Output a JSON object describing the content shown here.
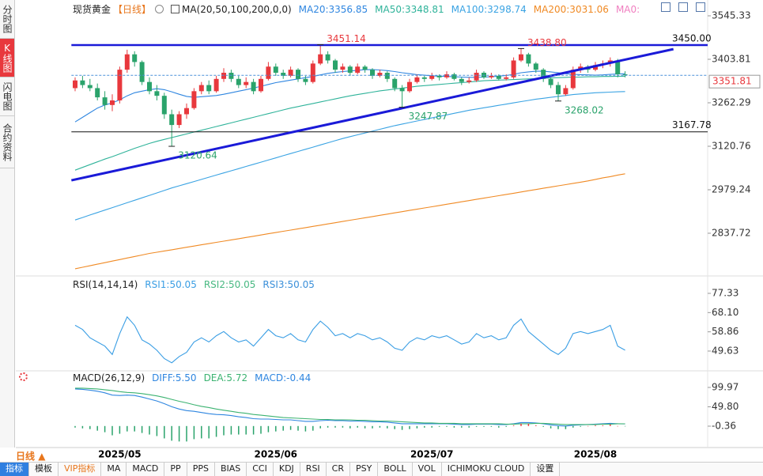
{
  "sidebar": {
    "tabs": [
      "分时图",
      "K线图",
      "闪电图",
      "合约资料"
    ]
  },
  "period_selector": "日线",
  "toolbar": [
    "指标",
    "模板",
    "VIP指标",
    "MA",
    "MACD",
    "PP",
    "PPS",
    "BIAS",
    "CCI",
    "KDJ",
    "RSI",
    "CR",
    "PSY",
    "BOLL",
    "VOL",
    "ICHIMOKU CLOUD",
    "设置"
  ],
  "chart_data": [
    {
      "type": "candlestick",
      "title": "现货黄金",
      "period": "【日线】",
      "indicator": "MA(20,50,100,200,0,0)",
      "categories": [
        null,
        null,
        null,
        null,
        null,
        null,
        "2025/05",
        null,
        null,
        null,
        null,
        null,
        null,
        null,
        null,
        null,
        null,
        null,
        null,
        null,
        null,
        null,
        null,
        null,
        null,
        null,
        null,
        "2025/06",
        null,
        null,
        null,
        null,
        null,
        null,
        null,
        null,
        null,
        null,
        null,
        null,
        null,
        null,
        null,
        null,
        null,
        null,
        null,
        null,
        "2025/07",
        null,
        null,
        null,
        null,
        null,
        null,
        null,
        null,
        null,
        null,
        null,
        null,
        null,
        null,
        null,
        null,
        null,
        null,
        null,
        null,
        null,
        "2025/08",
        null,
        null,
        null,
        null
      ],
      "open": [
        3310,
        3335,
        3320,
        3310,
        3280,
        3255,
        3270,
        3370,
        3420,
        3395,
        3330,
        3300,
        3285,
        3225,
        3190,
        3225,
        3245,
        3300,
        3320,
        3300,
        3340,
        3360,
        3340,
        3320,
        3330,
        3300,
        3340,
        3380,
        3360,
        3350,
        3370,
        3340,
        3330,
        3390,
        3420,
        3400,
        3370,
        3380,
        3360,
        3380,
        3370,
        3350,
        3360,
        3340,
        3310,
        3300,
        3330,
        3345,
        3340,
        3350,
        3345,
        3355,
        3340,
        3330,
        3335,
        3360,
        3345,
        3350,
        3340,
        3345,
        3400,
        3420,
        3390,
        3370,
        3340,
        3320,
        3290,
        3310,
        3370,
        3380,
        3370,
        3385,
        3390,
        3400,
        3355
      ],
      "high": [
        3345,
        3350,
        3340,
        3325,
        3300,
        3290,
        3380,
        3435,
        3430,
        3400,
        3345,
        3320,
        3295,
        3240,
        3235,
        3260,
        3310,
        3330,
        3335,
        3350,
        3375,
        3370,
        3350,
        3345,
        3340,
        3350,
        3395,
        3390,
        3370,
        3380,
        3375,
        3350,
        3400,
        3451.14,
        3430,
        3405,
        3390,
        3385,
        3390,
        3385,
        3375,
        3370,
        3365,
        3345,
        3320,
        3340,
        3355,
        3350,
        3360,
        3355,
        3365,
        3360,
        3345,
        3345,
        3370,
        3365,
        3360,
        3355,
        3355,
        3410,
        3438.8,
        3425,
        3395,
        3375,
        3345,
        3330,
        3320,
        3380,
        3390,
        3385,
        3395,
        3400,
        3410,
        3405,
        3365
      ],
      "low": [
        3300,
        3310,
        3300,
        3270,
        3240,
        3235,
        3260,
        3360,
        3380,
        3320,
        3290,
        3270,
        3210,
        3120.64,
        3180,
        3210,
        3240,
        3290,
        3290,
        3295,
        3330,
        3330,
        3310,
        3310,
        3290,
        3295,
        3335,
        3350,
        3340,
        3345,
        3330,
        3320,
        3325,
        3385,
        3390,
        3360,
        3360,
        3350,
        3355,
        3360,
        3340,
        3345,
        3330,
        3300,
        3247.87,
        3295,
        3325,
        3330,
        3335,
        3335,
        3340,
        3335,
        3320,
        3325,
        3330,
        3340,
        3340,
        3335,
        3335,
        3340,
        3395,
        3380,
        3360,
        3330,
        3310,
        3268.02,
        3285,
        3305,
        3360,
        3360,
        3365,
        3375,
        3380,
        3345,
        3345
      ],
      "close": [
        3335,
        3320,
        3310,
        3280,
        3255,
        3270,
        3370,
        3420,
        3395,
        3330,
        3300,
        3285,
        3225,
        3190,
        3225,
        3245,
        3300,
        3320,
        3300,
        3340,
        3360,
        3340,
        3320,
        3330,
        3300,
        3340,
        3380,
        3360,
        3350,
        3370,
        3340,
        3330,
        3390,
        3420,
        3400,
        3370,
        3380,
        3360,
        3380,
        3370,
        3350,
        3360,
        3340,
        3310,
        3300,
        3330,
        3345,
        3340,
        3350,
        3345,
        3355,
        3340,
        3330,
        3335,
        3360,
        3345,
        3350,
        3340,
        3345,
        3400,
        3420,
        3390,
        3370,
        3340,
        3320,
        3290,
        3310,
        3370,
        3380,
        3370,
        3385,
        3390,
        3400,
        3355,
        3351.81
      ],
      "up_color": "#e8383d",
      "down_color": "#2aa36b",
      "series": [
        {
          "name": "MA20:3356.85",
          "color": "#2f86e0",
          "values": [
            3200,
            3215,
            3230,
            3245,
            3255,
            3262,
            3272,
            3285,
            3295,
            3300,
            3305,
            3308,
            3305,
            3298,
            3290,
            3283,
            3280,
            3282,
            3284,
            3286,
            3290,
            3295,
            3300,
            3305,
            3310,
            3316,
            3322,
            3328,
            3332,
            3336,
            3340,
            3344,
            3348,
            3353,
            3358,
            3361,
            3364,
            3366,
            3368,
            3370,
            3370,
            3369,
            3367,
            3364,
            3360,
            3357,
            3354,
            3352,
            3350,
            3349,
            3348,
            3347,
            3346,
            3345,
            3345,
            3346,
            3347,
            3349,
            3351,
            3355,
            3360,
            3363,
            3365,
            3365,
            3363,
            3360,
            3357,
            3355,
            3354,
            3353,
            3352,
            3353,
            3355,
            3356,
            3356.85
          ]
        },
        {
          "name": "MA50:3348.81",
          "color": "#2fb39a",
          "values": [
            3043,
            3052,
            3061,
            3070,
            3079,
            3087,
            3096,
            3105,
            3114,
            3122,
            3130,
            3137,
            3143,
            3149,
            3155,
            3161,
            3167,
            3173,
            3179,
            3185,
            3191,
            3197,
            3203,
            3209,
            3215,
            3221,
            3227,
            3233,
            3239,
            3245,
            3250,
            3255,
            3260,
            3265,
            3270,
            3275,
            3280,
            3285,
            3289,
            3293,
            3297,
            3301,
            3304,
            3307,
            3310,
            3313,
            3316,
            3318,
            3320,
            3322,
            3324,
            3326,
            3328,
            3330,
            3332,
            3334,
            3335,
            3336,
            3337,
            3338,
            3339,
            3340,
            3341,
            3342,
            3343,
            3344,
            3345,
            3346,
            3346,
            3347,
            3347,
            3348,
            3348,
            3348.5,
            3348.81
          ]
        },
        {
          "name": "MA100:3298.74",
          "color": "#3aa3e3",
          "values": [
            2881,
            2889,
            2897,
            2905,
            2913,
            2921,
            2929,
            2937,
            2945,
            2953,
            2961,
            2969,
            2977,
            2985,
            2992,
            2999,
            3006,
            3013,
            3020,
            3027,
            3034,
            3041,
            3048,
            3055,
            3062,
            3069,
            3076,
            3083,
            3090,
            3097,
            3104,
            3111,
            3118,
            3125,
            3132,
            3139,
            3146,
            3152,
            3158,
            3164,
            3170,
            3176,
            3182,
            3188,
            3193,
            3198,
            3203,
            3208,
            3213,
            3218,
            3223,
            3228,
            3233,
            3238,
            3242,
            3246,
            3250,
            3254,
            3258,
            3262,
            3266,
            3270,
            3274,
            3277,
            3280,
            3283,
            3286,
            3289,
            3291,
            3293,
            3295,
            3296,
            3297,
            3298,
            3298.74
          ]
        },
        {
          "name": "MA200:3031.06",
          "color": "#f08a24",
          "values": [
            2722,
            2727,
            2732,
            2737,
            2742,
            2747,
            2752,
            2757,
            2762,
            2767,
            2772,
            2776,
            2780,
            2784,
            2788,
            2792,
            2796,
            2800,
            2804,
            2808,
            2812,
            2816,
            2820,
            2824,
            2828,
            2832,
            2836,
            2840,
            2844,
            2848,
            2852,
            2856,
            2860,
            2864,
            2868,
            2872,
            2876,
            2880,
            2884,
            2888,
            2892,
            2896,
            2900,
            2904,
            2908,
            2912,
            2916,
            2920,
            2924,
            2928,
            2932,
            2936,
            2940,
            2944,
            2948,
            2952,
            2956,
            2960,
            2964,
            2968,
            2972,
            2976,
            2980,
            2984,
            2988,
            2992,
            2996,
            3000,
            3004,
            3008,
            3013,
            3018,
            3022,
            3027,
            3031.06
          ]
        }
      ],
      "legend_extra": [
        {
          "name": "MA0:",
          "color": "#f07fc0"
        }
      ],
      "ylim": [
        2709.0,
        3545.33
      ],
      "yticks": [
        3545.33,
        3403.81,
        3262.29,
        3120.76,
        2979.24,
        2837.72
      ],
      "hlines": [
        {
          "value": 3450,
          "label": "3450.00",
          "color": "#1a1ad8"
        },
        {
          "value": 3167.78,
          "color": "#111111"
        }
      ],
      "trendline": {
        "x": [
          -0.5,
          80.5
        ],
        "values": [
          3010,
          3437
        ],
        "color": "#1a1ad8"
      },
      "last_price": {
        "value": 3351.81,
        "color": "#4a90d9",
        "label_color": "#e8383d"
      },
      "annotations": [
        {
          "index": 33,
          "value": 3451.14
        },
        {
          "index": 60,
          "value": 3438.8,
          "label": "3438.80"
        },
        {
          "index": 44,
          "value": 3247.87
        },
        {
          "index": 65,
          "value": 3268.02
        },
        {
          "index": 13,
          "value": 3120.64
        }
      ]
    },
    {
      "type": "line",
      "title": "RSI(14,14,14)",
      "series": [
        {
          "name": "RSI1:50.05",
          "color": "#3a9ee4",
          "values": [
            62,
            60,
            56,
            54,
            52,
            48,
            58,
            66,
            62,
            55,
            53,
            50,
            46,
            44,
            47,
            49,
            54,
            56,
            54,
            57,
            59,
            56,
            54,
            55,
            52,
            56,
            60,
            57,
            56,
            58,
            55,
            54,
            60,
            64,
            61,
            57,
            58,
            56,
            58,
            57,
            55,
            56,
            54,
            51,
            50,
            54,
            56,
            55,
            57,
            56,
            57,
            55,
            53,
            54,
            58,
            56,
            57,
            55,
            56,
            62,
            65,
            59,
            56,
            53,
            50,
            48,
            51,
            58,
            59,
            58,
            59,
            60,
            62,
            52,
            50.05
          ]
        }
      ],
      "legend_extra": [
        {
          "name": "RSI2:50.05",
          "color": "#47b881"
        },
        {
          "name": "RSI3:50.05",
          "color": "#3a8fd9"
        }
      ],
      "ylim": [
        41.65,
        83.4
      ],
      "yticks": [
        77.33,
        {
          "value": 68.1,
          "label": "68.10"
        },
        58.86,
        49.63
      ]
    },
    {
      "type": "macd",
      "title": "MACD(26,12,9)",
      "series": [
        {
          "name": "DIFF:5.50",
          "color": "#2f86e0",
          "values": [
            96,
            95,
            93,
            90,
            86,
            80,
            79,
            80,
            79,
            75,
            70,
            65,
            58,
            50,
            44,
            40,
            38,
            35,
            32,
            30,
            29,
            27,
            24,
            22,
            19,
            18,
            18,
            17,
            16,
            16,
            14,
            12,
            12,
            14,
            15,
            14,
            14,
            13,
            13,
            12,
            11,
            11,
            10,
            8,
            6,
            6,
            6,
            6,
            6,
            6,
            6,
            5,
            4,
            4,
            5,
            5,
            5,
            4,
            4,
            6,
            9,
            9,
            8,
            6,
            3,
            1,
            0,
            2,
            3,
            4,
            5,
            6,
            7,
            6,
            5.5
          ]
        },
        {
          "name": "DEA:5.72",
          "color": "#3cb371",
          "values": [
            98,
            98,
            97,
            96,
            94,
            92,
            89,
            87,
            86,
            84,
            81,
            78,
            74,
            69,
            64,
            60,
            55,
            51,
            48,
            44,
            41,
            38,
            35,
            33,
            30,
            28,
            26,
            24,
            22,
            21,
            20,
            19,
            18,
            17,
            17,
            16,
            16,
            16,
            15,
            15,
            14,
            13,
            13,
            12,
            11,
            10,
            9,
            8,
            8,
            7,
            7,
            7,
            6,
            6,
            6,
            6,
            6,
            6,
            5,
            5,
            6,
            6,
            7,
            7,
            6,
            5,
            4,
            4,
            4,
            4,
            4,
            5,
            5,
            6,
            5.72
          ]
        },
        {
          "name": "MACD:-0.44",
          "type": "bar",
          "color": "#2f86e0",
          "up_color": "#e8383d",
          "down_color": "#2aa36b",
          "values": [
            -4,
            -6,
            -8,
            -12,
            -16,
            -24,
            -20,
            -14,
            -14,
            -18,
            -22,
            -26,
            -32,
            -38,
            -40,
            -40,
            -34,
            -32,
            -32,
            -28,
            -24,
            -22,
            -22,
            -22,
            -22,
            -20,
            -16,
            -14,
            -12,
            -10,
            -12,
            -14,
            -12,
            -6,
            -4,
            -4,
            -4,
            -6,
            -4,
            -6,
            -6,
            -4,
            -6,
            -8,
            -10,
            -8,
            -6,
            -4,
            -4,
            -2,
            -2,
            -4,
            -4,
            -4,
            -2,
            -2,
            -2,
            -4,
            -2,
            2,
            6,
            6,
            2,
            -2,
            -6,
            -8,
            -8,
            -4,
            -2,
            0,
            2,
            2,
            4,
            0,
            -0.44
          ]
        }
      ],
      "ylim": [
        -43.4,
        124.5
      ],
      "yticks": [
        99.97,
        {
          "value": 49.8,
          "label": "49.80"
        },
        -0.36
      ]
    }
  ]
}
